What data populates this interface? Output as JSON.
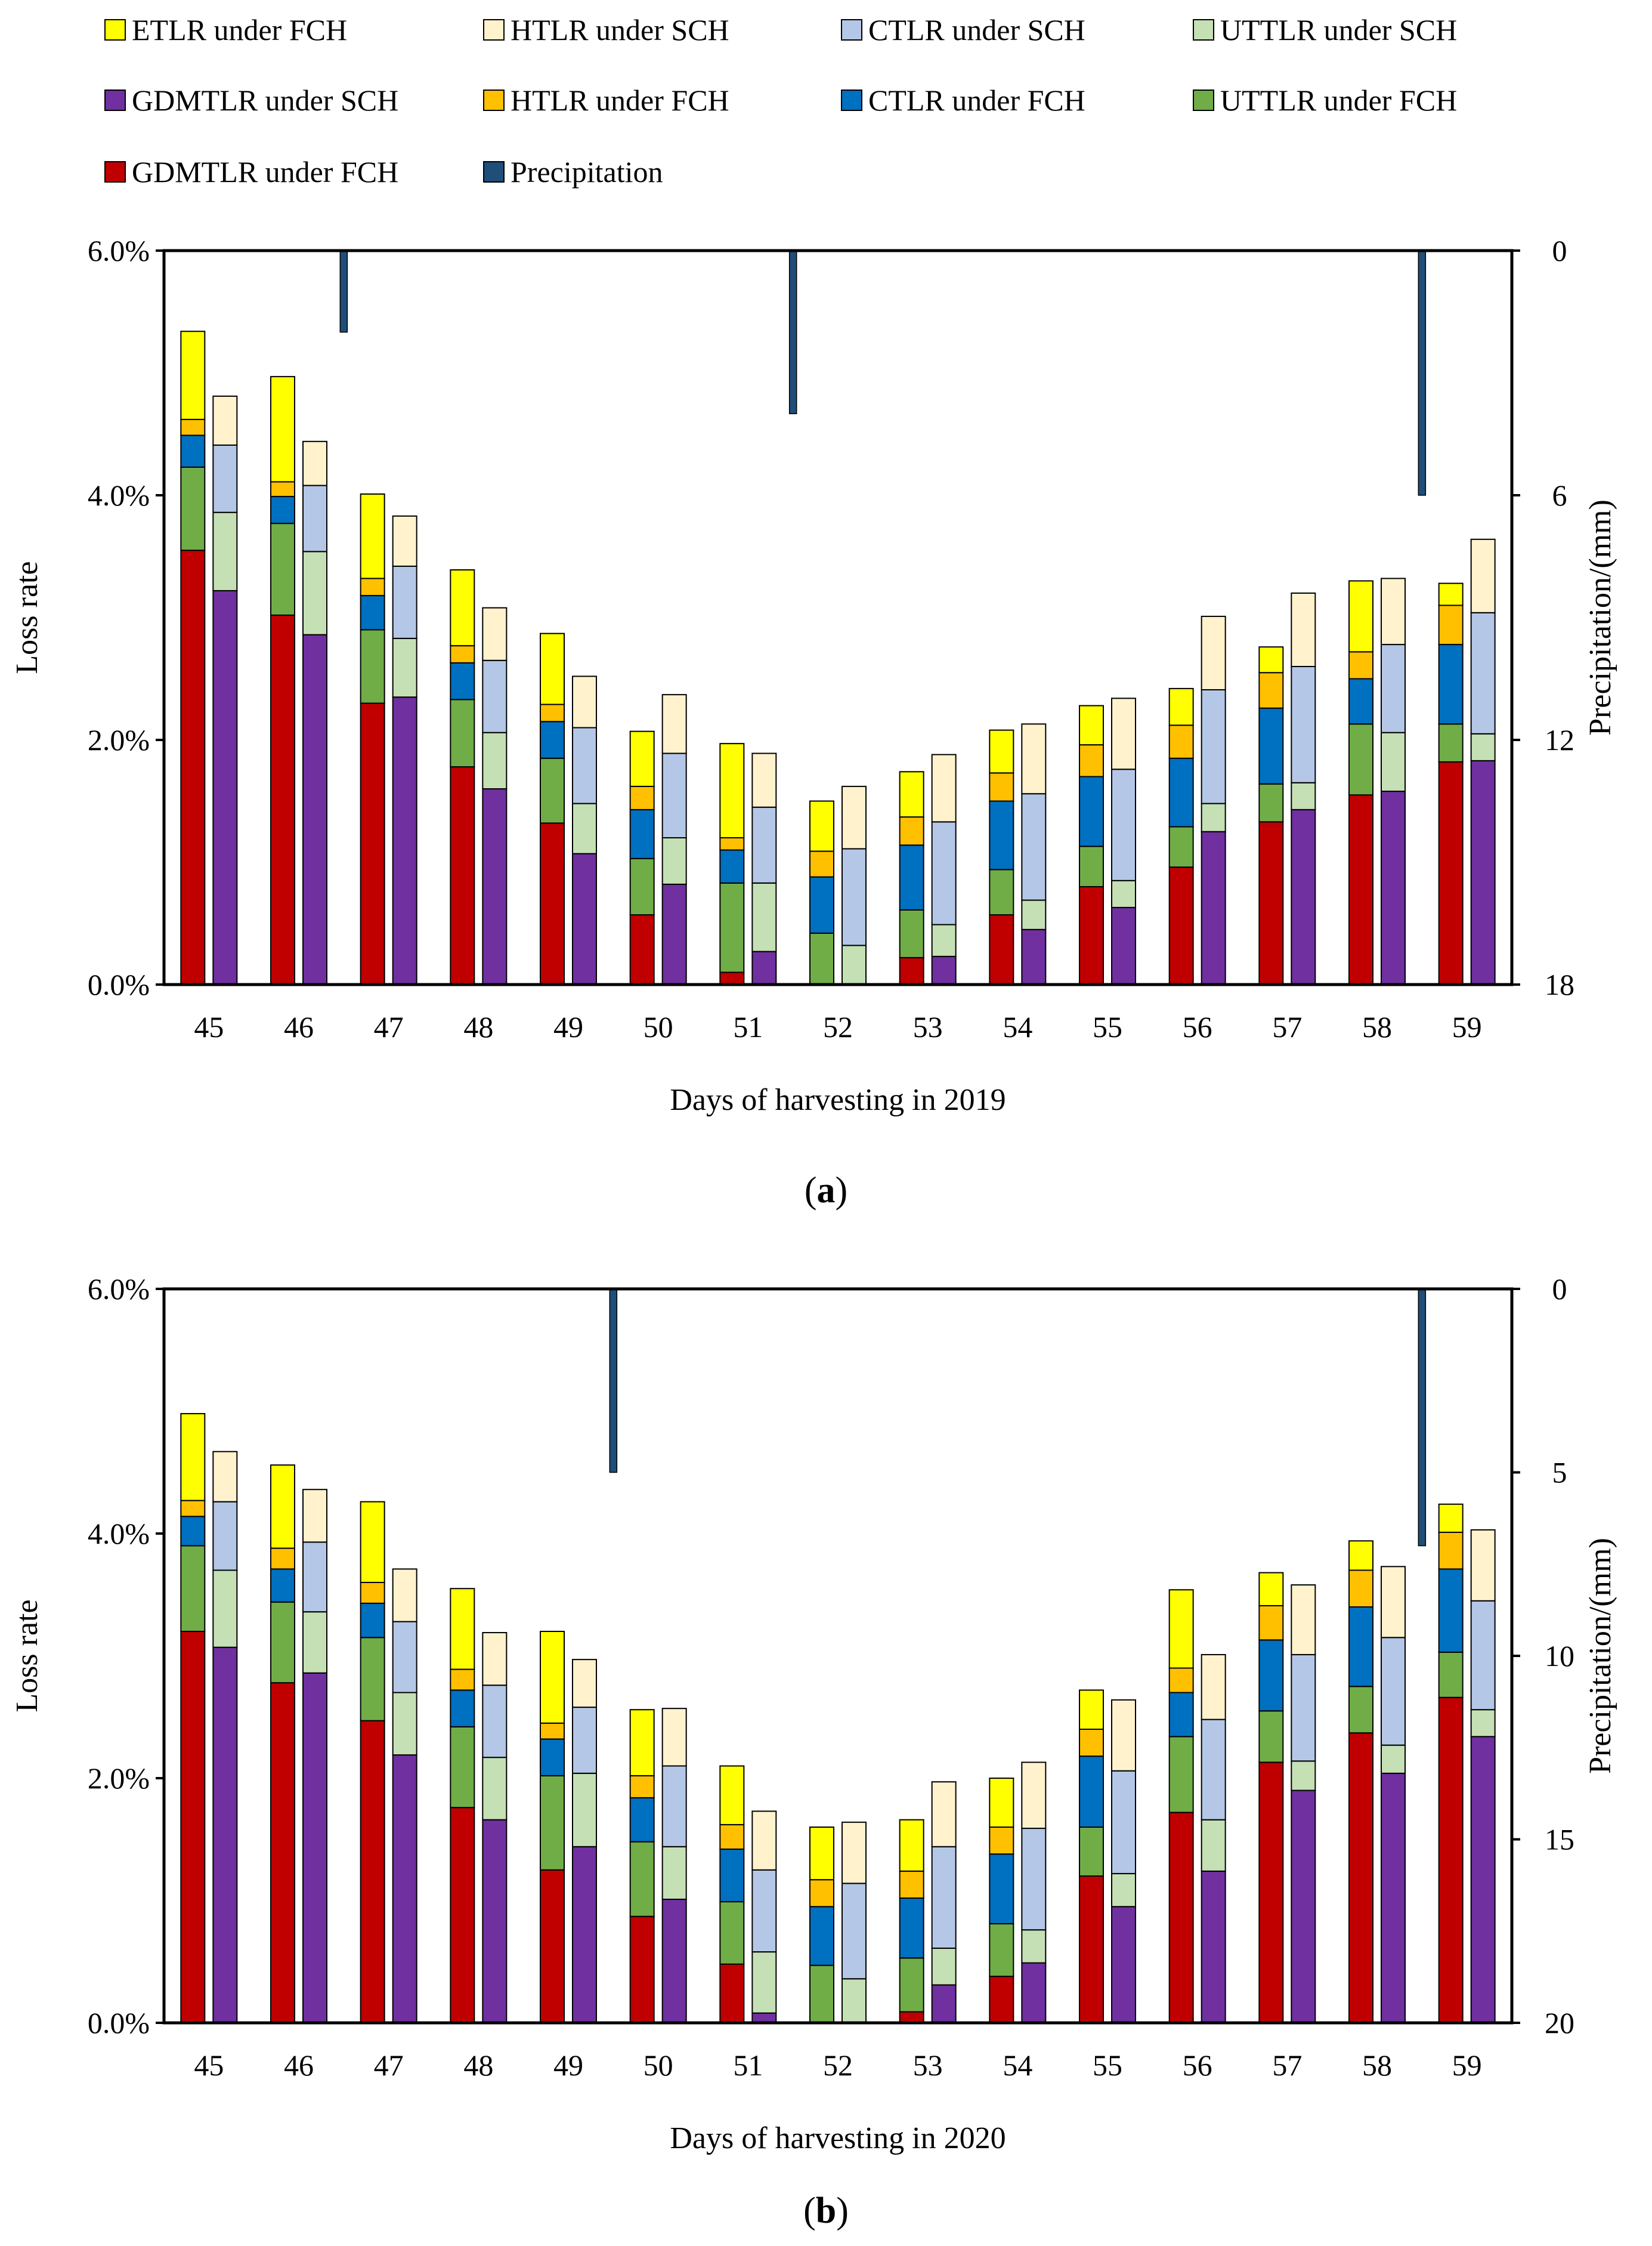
{
  "legend": [
    {
      "label": "ETLR under FCH",
      "color": "#ffff00"
    },
    {
      "label": "HTLR under SCH",
      "color": "#fff2cc"
    },
    {
      "label": "CTLR under SCH",
      "color": "#b4c7e7"
    },
    {
      "label": "UTTLR under SCH",
      "color": "#c5e0b4"
    },
    {
      "label": "GDMTLR under SCH",
      "color": "#7030a0"
    },
    {
      "label": "HTLR under FCH",
      "color": "#ffc000"
    },
    {
      "label": "CTLR under FCH",
      "color": "#0070c0"
    },
    {
      "label": "UTTLR under FCH",
      "color": "#70ad47"
    },
    {
      "label": "GDMTLR under FCH",
      "color": "#c00000"
    },
    {
      "label": "Precipitation",
      "color": "#1f4e79"
    }
  ],
  "fch_keys": [
    "GDMTLR",
    "UTTLR",
    "CTLR",
    "HTLR",
    "ETLR"
  ],
  "sch_keys": [
    "GDMTLR",
    "UTTLR",
    "CTLR",
    "HTLR"
  ],
  "fch_colors": {
    "GDMTLR": "#c00000",
    "UTTLR": "#70ad47",
    "CTLR": "#0070c0",
    "HTLR": "#ffc000",
    "ETLR": "#ffff00"
  },
  "sch_colors": {
    "GDMTLR": "#7030a0",
    "UTTLR": "#c5e0b4",
    "CTLR": "#b4c7e7",
    "HTLR": "#fff2cc"
  },
  "precip_color": "#1f4e79",
  "chart_data": [
    {
      "type": "bar",
      "id": "a",
      "caption_letter": "a",
      "xlabel": "Days of harvesting in 2019",
      "ylabel": "Loss rate",
      "y2label": "Precipitation/(mm)",
      "ylim": [
        0,
        6.0
      ],
      "yticks": [
        "0.0%",
        "2.0%",
        "4.0%",
        "6.0%"
      ],
      "y2lim": [
        0,
        18
      ],
      "y2ticks": [
        "0",
        "6",
        "12",
        "18"
      ],
      "categories": [
        "45",
        "46",
        "47",
        "48",
        "49",
        "50",
        "51",
        "52",
        "53",
        "54",
        "55",
        "56",
        "57",
        "58",
        "59"
      ],
      "fch": {
        "GDMTLR": [
          3.55,
          3.02,
          2.3,
          1.78,
          1.32,
          0.57,
          0.1,
          0.0,
          0.22,
          0.57,
          0.8,
          0.96,
          1.33,
          1.55,
          1.82
        ],
        "UTTLR": [
          0.68,
          0.75,
          0.6,
          0.55,
          0.53,
          0.46,
          0.73,
          0.42,
          0.39,
          0.37,
          0.33,
          0.33,
          0.31,
          0.58,
          0.31
        ],
        "CTLR": [
          0.26,
          0.22,
          0.28,
          0.3,
          0.3,
          0.4,
          0.27,
          0.46,
          0.53,
          0.56,
          0.57,
          0.56,
          0.62,
          0.37,
          0.65
        ],
        "HTLR": [
          0.13,
          0.12,
          0.14,
          0.14,
          0.14,
          0.19,
          0.1,
          0.21,
          0.23,
          0.23,
          0.26,
          0.27,
          0.29,
          0.22,
          0.32
        ],
        "ETLR": [
          0.72,
          0.86,
          0.69,
          0.62,
          0.58,
          0.45,
          0.77,
          0.41,
          0.37,
          0.35,
          0.32,
          0.3,
          0.21,
          0.58,
          0.18
        ]
      },
      "sch": {
        "GDMTLR": [
          3.22,
          2.86,
          2.35,
          1.6,
          1.07,
          0.82,
          0.27,
          0.0,
          0.23,
          0.45,
          0.63,
          1.25,
          1.43,
          1.58,
          1.83
        ],
        "UTTLR": [
          0.64,
          0.68,
          0.48,
          0.46,
          0.41,
          0.38,
          0.56,
          0.32,
          0.26,
          0.24,
          0.22,
          0.23,
          0.22,
          0.48,
          0.22
        ],
        "CTLR": [
          0.55,
          0.54,
          0.59,
          0.59,
          0.62,
          0.69,
          0.62,
          0.79,
          0.84,
          0.87,
          0.91,
          0.93,
          0.95,
          0.72,
          0.99
        ],
        "HTLR": [
          0.4,
          0.36,
          0.41,
          0.43,
          0.42,
          0.48,
          0.44,
          0.51,
          0.55,
          0.57,
          0.58,
          0.6,
          0.6,
          0.54,
          0.6
        ]
      },
      "precip": {
        "45": 0,
        "46": 2.0,
        "47": 0,
        "48": 0,
        "49": 0,
        "50": 0,
        "51": 4.0,
        "52": 0,
        "53": 0,
        "54": 0,
        "55": 0,
        "56": 0,
        "57": 0,
        "58": 6.0,
        "59": 0
      }
    },
    {
      "type": "bar",
      "id": "b",
      "caption_letter": "b",
      "xlabel": "Days of harvesting in 2020",
      "ylabel": "Loss rate",
      "y2label": "Precipitation/(mm)",
      "ylim": [
        0,
        6.0
      ],
      "yticks": [
        "0.0%",
        "2.0%",
        "4.0%",
        "6.0%"
      ],
      "y2lim": [
        0,
        20
      ],
      "y2ticks": [
        "20",
        "15",
        "10",
        "5",
        "0"
      ],
      "categories": [
        "45",
        "46",
        "47",
        "48",
        "49",
        "50",
        "51",
        "52",
        "53",
        "54",
        "55",
        "56",
        "57",
        "58",
        "59"
      ],
      "fch": {
        "GDMTLR": [
          3.2,
          2.78,
          2.47,
          1.76,
          1.25,
          0.87,
          0.48,
          0.0,
          0.09,
          0.38,
          1.2,
          1.72,
          2.13,
          2.37,
          2.66
        ],
        "UTTLR": [
          0.7,
          0.66,
          0.68,
          0.66,
          0.77,
          0.61,
          0.51,
          0.47,
          0.44,
          0.43,
          0.4,
          0.62,
          0.42,
          0.38,
          0.37
        ],
        "CTLR": [
          0.24,
          0.27,
          0.28,
          0.3,
          0.3,
          0.36,
          0.43,
          0.48,
          0.49,
          0.57,
          0.58,
          0.36,
          0.58,
          0.65,
          0.68
        ],
        "HTLR": [
          0.13,
          0.17,
          0.17,
          0.17,
          0.13,
          0.18,
          0.2,
          0.22,
          0.22,
          0.22,
          0.22,
          0.2,
          0.28,
          0.3,
          0.3
        ],
        "ETLR": [
          0.71,
          0.68,
          0.66,
          0.66,
          0.75,
          0.54,
          0.48,
          0.43,
          0.42,
          0.4,
          0.32,
          0.64,
          0.27,
          0.24,
          0.23
        ]
      },
      "sch": {
        "GDMTLR": [
          3.07,
          2.86,
          2.19,
          1.66,
          1.44,
          1.01,
          0.08,
          0.0,
          0.31,
          0.49,
          0.95,
          1.24,
          1.9,
          2.04,
          2.34
        ],
        "UTTLR": [
          0.63,
          0.5,
          0.51,
          0.51,
          0.6,
          0.43,
          0.5,
          0.36,
          0.3,
          0.27,
          0.27,
          0.42,
          0.24,
          0.23,
          0.22
        ],
        "CTLR": [
          0.56,
          0.57,
          0.58,
          0.59,
          0.54,
          0.66,
          0.67,
          0.78,
          0.83,
          0.83,
          0.84,
          0.82,
          0.87,
          0.88,
          0.89
        ],
        "HTLR": [
          0.41,
          0.43,
          0.43,
          0.43,
          0.39,
          0.47,
          0.48,
          0.5,
          0.53,
          0.54,
          0.58,
          0.53,
          0.57,
          0.58,
          0.58
        ]
      },
      "precip": {
        "45": 0,
        "46": 0,
        "47": 0,
        "48": 0,
        "49": 5.0,
        "50": 0,
        "51": 0,
        "52": 0,
        "53": 0,
        "54": 0,
        "55": 0,
        "56": 0,
        "57": 0,
        "58": 7.0,
        "59": 0
      }
    }
  ]
}
